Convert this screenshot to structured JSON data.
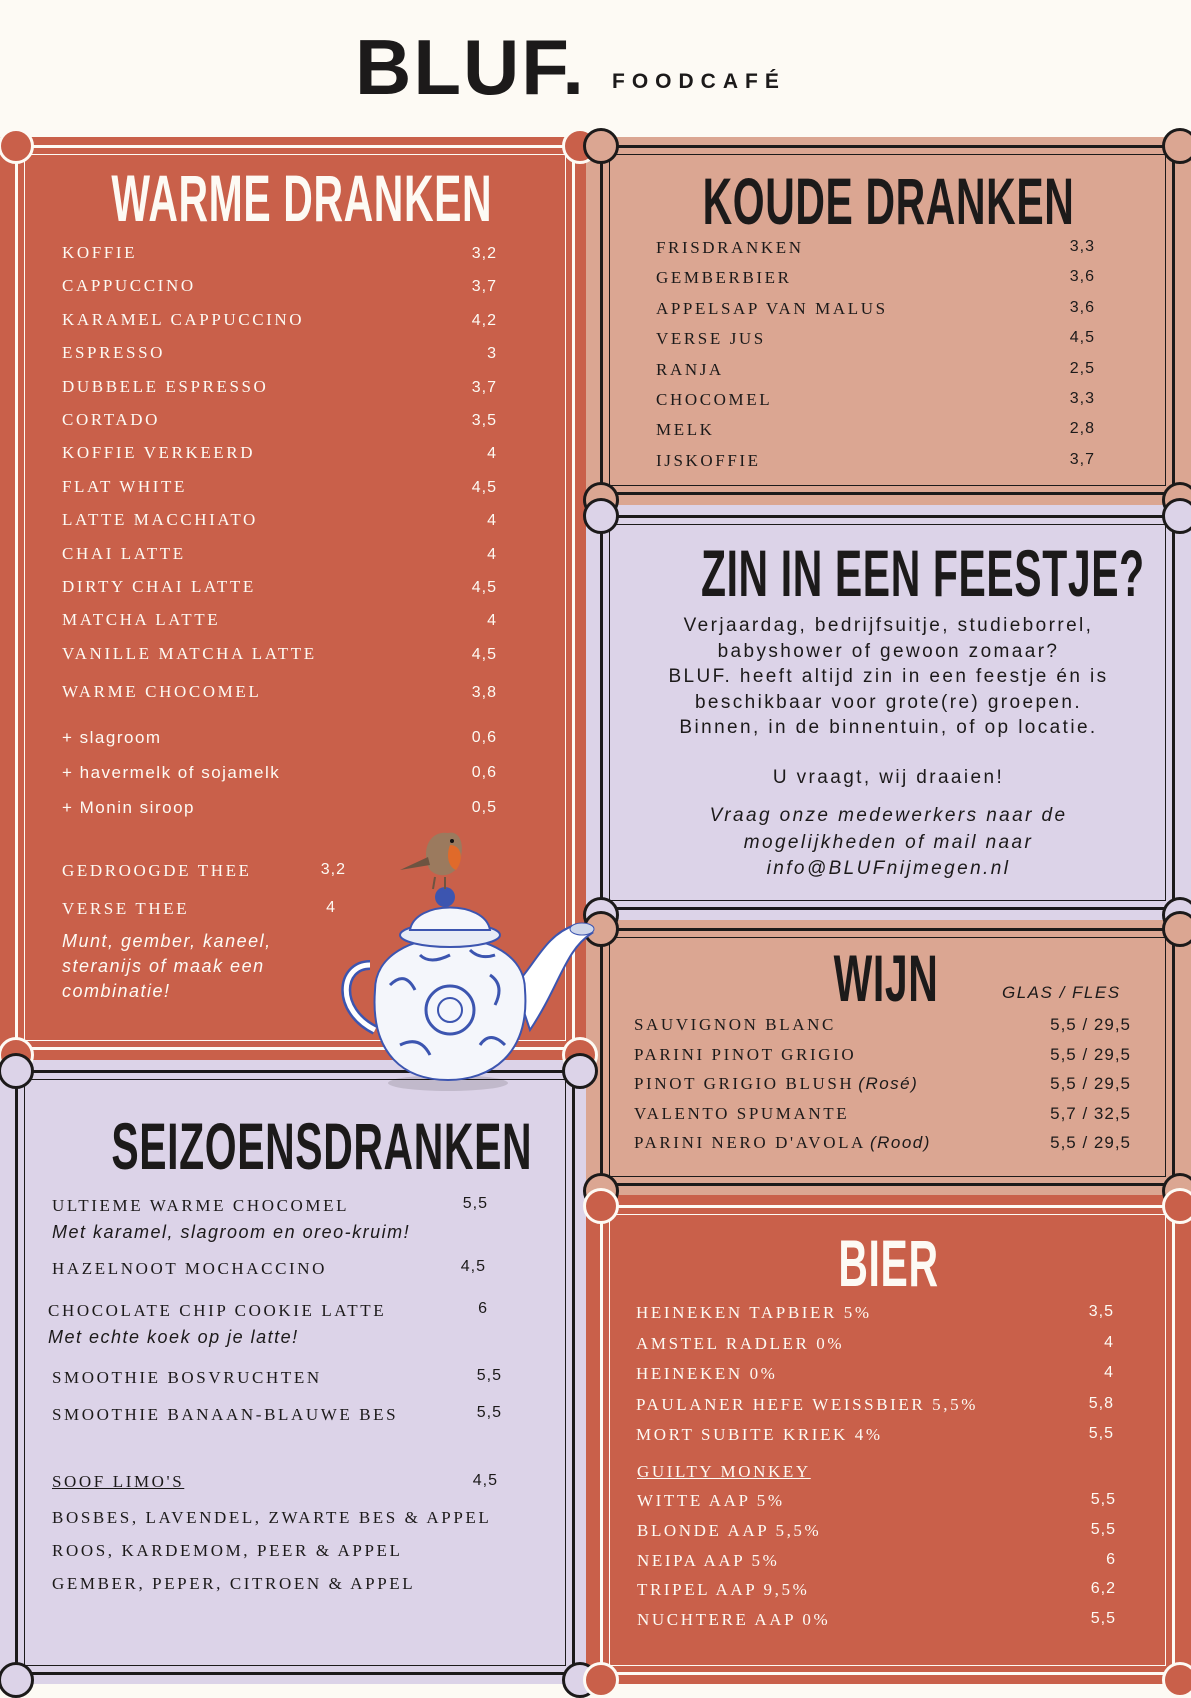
{
  "header": {
    "logo": "BLUF.",
    "subtitle": "FOODCAFÉ"
  },
  "colors": {
    "orange": "#c9604a",
    "peach": "#dba692",
    "lavender": "#dcd3e8",
    "cream": "#fdfaf4",
    "dark": "#1c1a1a"
  },
  "warme": {
    "title": "WARME DRANKEN",
    "items": [
      [
        "KOFFIE",
        "3,2"
      ],
      [
        "CAPPUCCINO",
        "3,7"
      ],
      [
        "KARAMEL CAPPUCCINO",
        "4,2"
      ],
      [
        "ESPRESSO",
        "3"
      ],
      [
        "DUBBELE ESPRESSO",
        "3,7"
      ],
      [
        "CORTADO",
        "3,5"
      ],
      [
        "KOFFIE VERKEERD",
        "4"
      ],
      [
        "FLAT WHITE",
        "4,5"
      ],
      [
        "LATTE MACCHIATO",
        "4"
      ],
      [
        "CHAI LATTE",
        "4"
      ],
      [
        "DIRTY CHAI LATTE",
        "4,5"
      ],
      [
        "MATCHA LATTE",
        "4"
      ],
      [
        "VANILLE MATCHA LATTE",
        "4,5"
      ],
      [
        "WARME CHOCOMEL",
        "3,8"
      ]
    ],
    "extras": [
      [
        "+ slagroom",
        "0,6"
      ],
      [
        "+ havermelk of sojamelk",
        "0,6"
      ],
      [
        "+ Monin siroop",
        "0,5"
      ]
    ],
    "thee": [
      [
        "GEDROOGDE THEE",
        "3,2"
      ],
      [
        "VERSE THEE",
        "4"
      ]
    ],
    "thee_note": [
      "Munt, gember, kaneel,",
      "steranijs of maak een",
      "combinatie!"
    ]
  },
  "koude": {
    "title": "KOUDE DRANKEN",
    "items": [
      [
        "FRISDRANKEN",
        "3,3"
      ],
      [
        "GEMBERBIER",
        "3,6"
      ],
      [
        "APPELSAP VAN MALUS",
        "3,6"
      ],
      [
        "VERSE JUS",
        "4,5"
      ],
      [
        "RANJA",
        "2,5"
      ],
      [
        "CHOCOMEL",
        "3,3"
      ],
      [
        "MELK",
        "2,8"
      ],
      [
        "IJSKOFFIE",
        "3,7"
      ]
    ]
  },
  "feest": {
    "title": "ZIN IN EEN FEESTJE?",
    "lines": [
      "Verjaardag, bedrijfsuitje, studieborrel,",
      "babyshower of gewoon zomaar?",
      "BLUF. heeft altijd zin in een feestje én is",
      "beschikbaar voor grote(re) groepen.",
      "Binnen, in de binnentuin, of op locatie."
    ],
    "tagline": "U vraagt, wij draaien!",
    "contact": [
      "Vraag onze medewerkers naar de",
      "mogelijkheden of mail naar",
      "info@BLUFnijmegen.nl"
    ]
  },
  "wijn": {
    "title": "WIJN",
    "header": "GLAS / FLES",
    "items": [
      [
        "SAUVIGNON BLANC",
        "",
        "5,5 / 29,5"
      ],
      [
        "PARINI PINOT GRIGIO",
        "",
        "5,5 / 29,5"
      ],
      [
        "PINOT GRIGIO BLUSH",
        "(Rosé)",
        "5,5 / 29,5"
      ],
      [
        "VALENTO SPUMANTE",
        "",
        "5,7 / 32,5"
      ],
      [
        "PARINI NERO D'AVOLA",
        "(Rood)",
        "5,5 / 29,5"
      ]
    ]
  },
  "seizoen": {
    "title": "SEIZOENSDRANKEN",
    "items": [
      [
        "ULTIEME WARME CHOCOMEL",
        "5,5",
        "Met karamel, slagroom en oreo-kruim!"
      ],
      [
        "HAZELNOOT MOCHACCINO",
        "4,5",
        ""
      ],
      [
        "CHOCOLATE CHIP COOKIE LATTE",
        "6",
        "Met echte koek op je latte!"
      ],
      [
        "SMOOTHIE BOSVRUCHTEN",
        "5,5",
        ""
      ],
      [
        "SMOOTHIE BANAAN-BLAUWE BES",
        "5,5",
        ""
      ]
    ],
    "limo": {
      "label": "SOOF LIMO'S",
      "price": "4,5"
    },
    "flavours": [
      "BOSBES, LAVENDEL, ZWARTE BES & APPEL",
      "ROOS, KARDEMOM, PEER & APPEL",
      "GEMBER, PEPER, CITROEN & APPEL"
    ]
  },
  "bier": {
    "title": "BIER",
    "items": [
      [
        "HEINEKEN TAPBIER 5%",
        "3,5"
      ],
      [
        "AMSTEL RADLER 0%",
        "4"
      ],
      [
        "HEINEKEN 0%",
        "4"
      ],
      [
        "PAULANER HEFE WEISSBIER 5,5%",
        "5,8"
      ],
      [
        "MORT SUBITE KRIEK 4%",
        "5,5"
      ]
    ],
    "group": "GUILTY MONKEY",
    "group_items": [
      [
        "WITTE AAP 5%",
        "5,5"
      ],
      [
        "BLONDE AAP 5,5%",
        "5,5"
      ],
      [
        "NEIPA AAP 5%",
        "6"
      ],
      [
        "TRIPEL AAP 9,5%",
        "6,2"
      ],
      [
        "NUCHTERE AAP 0%",
        "5,5"
      ]
    ]
  }
}
